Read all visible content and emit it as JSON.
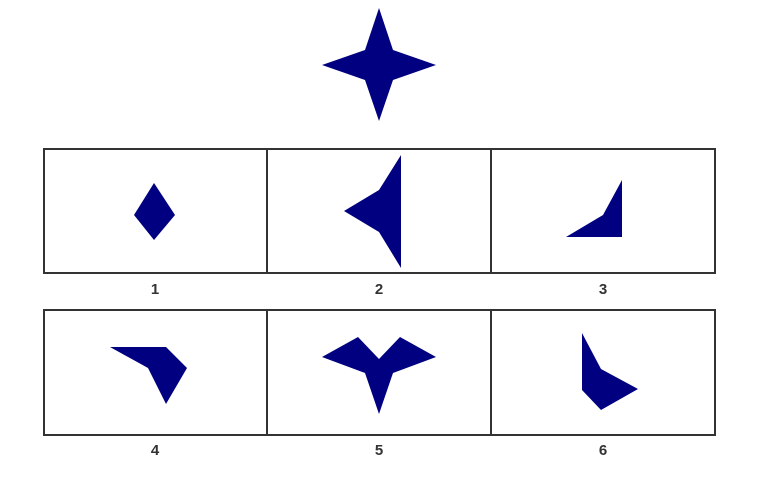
{
  "colors": {
    "shape": "#000080",
    "border": "#333333",
    "background": "#ffffff"
  },
  "question_figure": {
    "description_icon": "four-point-star-icon"
  },
  "options": [
    {
      "label": "1",
      "icon": "diamond-piece-icon"
    },
    {
      "label": "2",
      "icon": "triangle-piece-icon"
    },
    {
      "label": "3",
      "icon": "corner-piece-icon"
    },
    {
      "label": "4",
      "icon": "angled-piece-icon"
    },
    {
      "label": "5",
      "icon": "arrow-piece-icon"
    },
    {
      "label": "6",
      "icon": "bent-piece-icon"
    }
  ]
}
